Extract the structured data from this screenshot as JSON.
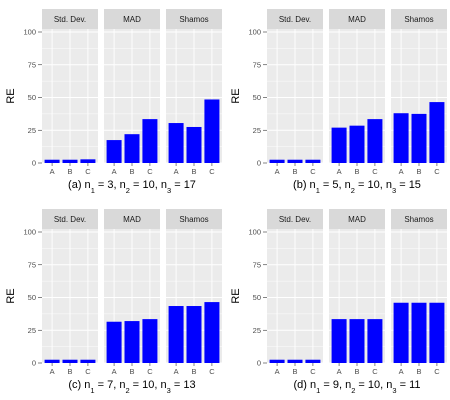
{
  "colors": {
    "bar": "#0000ff",
    "panel_bg": "#ebebeb",
    "strip_bg": "#d9d9d9",
    "grid_major": "#ffffff"
  },
  "chart_data": [
    {
      "type": "bar",
      "caption": {
        "prefix": "(a)",
        "n1": "3",
        "n2": "10",
        "n3": "17"
      },
      "ylabel": "RE",
      "ylim": [
        0,
        100
      ],
      "yticks": [
        0,
        25,
        50,
        75,
        100
      ],
      "categories": [
        "A",
        "B",
        "C"
      ],
      "facets": [
        {
          "strip": "Std. Dev.",
          "values": [
            2.5,
            2.5,
            2.8
          ]
        },
        {
          "strip": "MAD",
          "values": [
            17.5,
            22,
            33.5
          ]
        },
        {
          "strip": "Shamos",
          "values": [
            30.5,
            27.5,
            48.5
          ]
        }
      ]
    },
    {
      "type": "bar",
      "caption": {
        "prefix": "(b)",
        "n1": "5",
        "n2": "10",
        "n3": "15"
      },
      "ylabel": "RE",
      "ylim": [
        0,
        100
      ],
      "yticks": [
        0,
        25,
        50,
        75,
        100
      ],
      "categories": [
        "A",
        "B",
        "C"
      ],
      "facets": [
        {
          "strip": "Std. Dev.",
          "values": [
            2.5,
            2.5,
            2.5
          ]
        },
        {
          "strip": "MAD",
          "values": [
            27,
            28.5,
            33.5
          ]
        },
        {
          "strip": "Shamos",
          "values": [
            38,
            37.5,
            46.5
          ]
        }
      ]
    },
    {
      "type": "bar",
      "caption": {
        "prefix": "(c)",
        "n1": "7",
        "n2": "10",
        "n3": "13"
      },
      "ylabel": "RE",
      "ylim": [
        0,
        100
      ],
      "yticks": [
        0,
        25,
        50,
        75,
        100
      ],
      "categories": [
        "A",
        "B",
        "C"
      ],
      "facets": [
        {
          "strip": "Std. Dev.",
          "values": [
            2.5,
            2.5,
            2.5
          ]
        },
        {
          "strip": "MAD",
          "values": [
            31.5,
            32,
            33.5
          ]
        },
        {
          "strip": "Shamos",
          "values": [
            43.5,
            43.5,
            46.5
          ]
        }
      ]
    },
    {
      "type": "bar",
      "caption": {
        "prefix": "(d)",
        "n1": "9",
        "n2": "10",
        "n3": "11"
      },
      "ylabel": "RE",
      "ylim": [
        0,
        100
      ],
      "yticks": [
        0,
        25,
        50,
        75,
        100
      ],
      "categories": [
        "A",
        "B",
        "C"
      ],
      "facets": [
        {
          "strip": "Std. Dev.",
          "values": [
            2.5,
            2.5,
            2.5
          ]
        },
        {
          "strip": "MAD",
          "values": [
            33.5,
            33.5,
            33.5
          ]
        },
        {
          "strip": "Shamos",
          "values": [
            46,
            46,
            46
          ]
        }
      ]
    }
  ]
}
